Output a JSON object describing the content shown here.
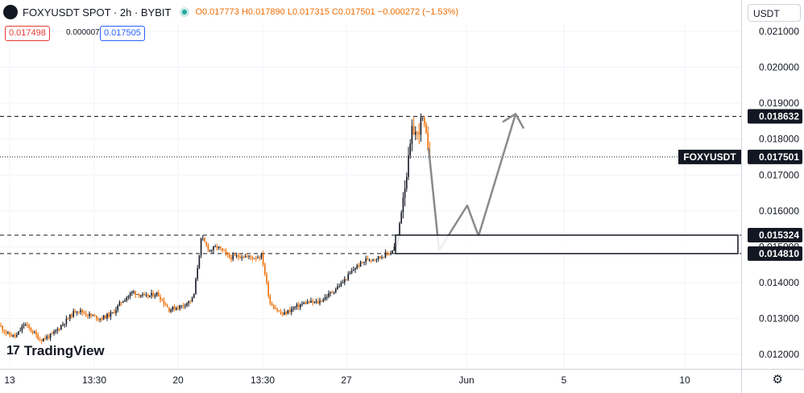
{
  "header": {
    "symbol": "FOXYUSDT SPOT · 2h · BYBIT",
    "open": "O0.017773",
    "high": "H0.017890",
    "low": "L0.017315",
    "close": "C0.017501",
    "change": "−0.000272 (−1.53%)",
    "bid": "0.017498",
    "spread": "0.000007",
    "ask": "0.017505",
    "currency": "USDT"
  },
  "branding": {
    "logo_text": "TradingView",
    "logo_mark": "17"
  },
  "colors": {
    "up": "#131722",
    "down": "#ef6c00",
    "accent": "#2962ff",
    "projection": "#8a8a8a"
  },
  "chart_data": {
    "type": "candlestick",
    "symbol": "FOXYUSDT",
    "timeframe": "2h",
    "y_range": [
      0.0116,
      0.0212
    ],
    "y_ticks": [
      "0.021000",
      "0.020000",
      "0.019000",
      "0.018000",
      "0.017000",
      "0.016000",
      "0.015000",
      "0.014000",
      "0.013000",
      "0.012000"
    ],
    "x_ticks": [
      "13",
      "13:30",
      "20",
      "13:30",
      "27",
      "Jun",
      "5",
      "10"
    ],
    "last_price": {
      "label": "FOXYUSDT",
      "value": "0.017501"
    },
    "levels": [
      {
        "value": 0.018632,
        "label": "0.018632",
        "style": "dashed"
      },
      {
        "value": 0.015324,
        "label": "0.015324",
        "style": "dashed"
      },
      {
        "value": 0.01481,
        "label": "0.014810",
        "style": "dashed"
      }
    ],
    "zone": {
      "top": 0.015324,
      "bottom": 0.01481
    },
    "price_path": [
      {
        "x": 0,
        "price": 0.0128
      },
      {
        "x": 10,
        "price": 0.01255
      },
      {
        "x": 20,
        "price": 0.0125
      },
      {
        "x": 30,
        "price": 0.01285
      },
      {
        "x": 40,
        "price": 0.01265
      },
      {
        "x": 50,
        "price": 0.0124
      },
      {
        "x": 65,
        "price": 0.01255
      },
      {
        "x": 80,
        "price": 0.0129
      },
      {
        "x": 95,
        "price": 0.01325
      },
      {
        "x": 110,
        "price": 0.0131
      },
      {
        "x": 125,
        "price": 0.013
      },
      {
        "x": 140,
        "price": 0.01315
      },
      {
        "x": 150,
        "price": 0.01345
      },
      {
        "x": 165,
        "price": 0.01375
      },
      {
        "x": 180,
        "price": 0.0136
      },
      {
        "x": 195,
        "price": 0.0137
      },
      {
        "x": 210,
        "price": 0.01325
      },
      {
        "x": 225,
        "price": 0.01335
      },
      {
        "x": 240,
        "price": 0.01355
      },
      {
        "x": 250,
        "price": 0.01525
      },
      {
        "x": 260,
        "price": 0.0149
      },
      {
        "x": 270,
        "price": 0.015
      },
      {
        "x": 285,
        "price": 0.0147
      },
      {
        "x": 300,
        "price": 0.01475
      },
      {
        "x": 315,
        "price": 0.0147
      },
      {
        "x": 325,
        "price": 0.01475
      },
      {
        "x": 335,
        "price": 0.01345
      },
      {
        "x": 350,
        "price": 0.0131
      },
      {
        "x": 365,
        "price": 0.0133
      },
      {
        "x": 380,
        "price": 0.01345
      },
      {
        "x": 395,
        "price": 0.01345
      },
      {
        "x": 410,
        "price": 0.0137
      },
      {
        "x": 425,
        "price": 0.014
      },
      {
        "x": 440,
        "price": 0.0144
      },
      {
        "x": 455,
        "price": 0.01465
      },
      {
        "x": 470,
        "price": 0.0147
      },
      {
        "x": 485,
        "price": 0.01485
      },
      {
        "x": 493,
        "price": 0.0151
      },
      {
        "x": 500,
        "price": 0.0164
      },
      {
        "x": 506,
        "price": 0.0172
      },
      {
        "x": 512,
        "price": 0.0183
      },
      {
        "x": 518,
        "price": 0.0181
      },
      {
        "x": 524,
        "price": 0.0186
      },
      {
        "x": 530,
        "price": 0.0179
      },
      {
        "x": 535,
        "price": 0.0175
      }
    ],
    "projection": [
      {
        "x": 532,
        "price": 0.01775
      },
      {
        "x": 545,
        "price": 0.0149
      },
      {
        "x": 580,
        "price": 0.01615
      },
      {
        "x": 594,
        "price": 0.0153
      },
      {
        "x": 640,
        "price": 0.0187
      }
    ]
  }
}
